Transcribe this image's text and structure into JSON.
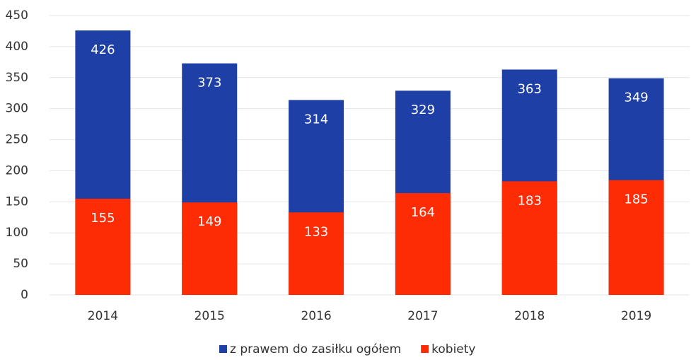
{
  "chart_data": {
    "type": "bar",
    "categories": [
      "2014",
      "2015",
      "2016",
      "2017",
      "2018",
      "2019"
    ],
    "series": [
      {
        "name": "z prawem do zasiłku ogółem",
        "color": "#1e3fa6",
        "values": [
          426,
          373,
          314,
          329,
          363,
          349
        ]
      },
      {
        "name": "kobiety",
        "color": "#fd2c05",
        "values": [
          155,
          149,
          133,
          164,
          183,
          185
        ]
      }
    ],
    "ylim": [
      0,
      450
    ],
    "yticks": [
      0,
      50,
      100,
      150,
      200,
      250,
      300,
      350,
      400,
      450
    ],
    "grid": true,
    "legend": "bottom"
  }
}
